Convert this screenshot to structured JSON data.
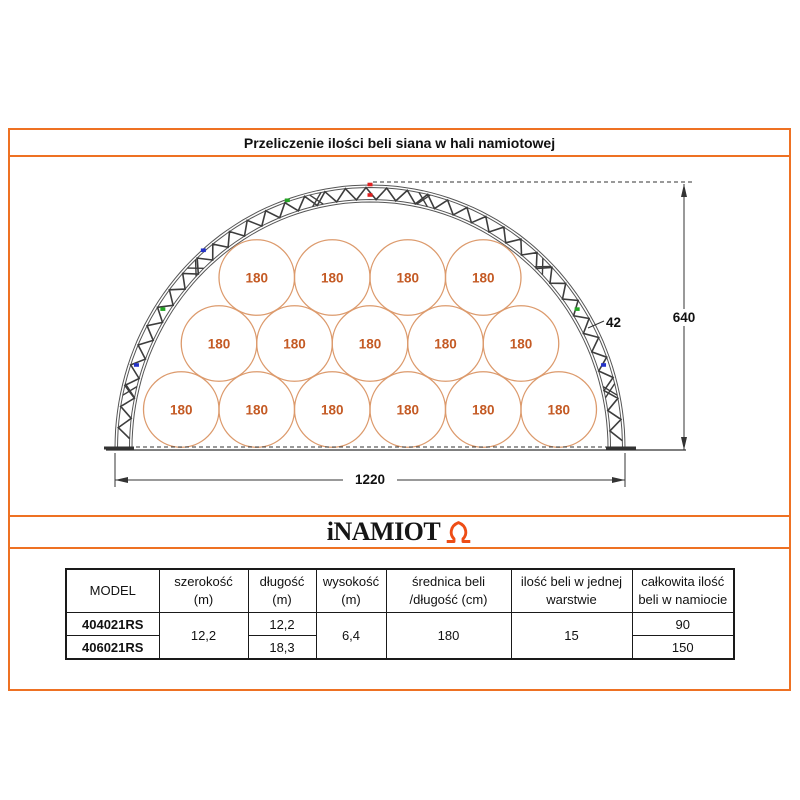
{
  "title": "Przeliczenie ilości beli siana w hali namiotowej",
  "logo": {
    "text": "iNAMIOT",
    "icon": "tent-icon",
    "icon_color": "#ee4d15"
  },
  "diagram": {
    "bale_label": "180",
    "bales_per_row_bottom_to_top": [
      6,
      5,
      4
    ],
    "total_bales_in_layer": 15,
    "dim_width": "1220",
    "dim_height": "640",
    "dim_truss": "42",
    "colors": {
      "bale_stroke": "#dc9a6c",
      "bale_text": "#c45a24",
      "truss": "#3d3d3d",
      "chord": "#555555",
      "line": "#333333",
      "dim_text": "#111111",
      "marker_red": "#e02020",
      "marker_green": "#24a524",
      "marker_blue": "#2432c8"
    }
  },
  "table": {
    "headers": [
      {
        "l1": "MODEL",
        "l2": ""
      },
      {
        "l1": "szerokość",
        "l2": "(m)"
      },
      {
        "l1": "długość",
        "l2": "(m)"
      },
      {
        "l1": "wysokość",
        "l2": "(m)"
      },
      {
        "l1": "średnica beli",
        "l2": "/długość (cm)"
      },
      {
        "l1": "ilość beli w jednej",
        "l2": "warstwie"
      },
      {
        "l1": "całkowita ilość",
        "l2": "beli w namiocie"
      }
    ],
    "szerokosc": "12,2",
    "wysokosc": "6,4",
    "srednica": "180",
    "ilosc_warstwa": "15",
    "rows": [
      {
        "model": "404021RS",
        "dlugosc": "12,2",
        "calkowita": "90"
      },
      {
        "model": "406021RS",
        "dlugosc": "18,3",
        "calkowita": "150"
      }
    ]
  },
  "accent_border_color": "#ee7123"
}
